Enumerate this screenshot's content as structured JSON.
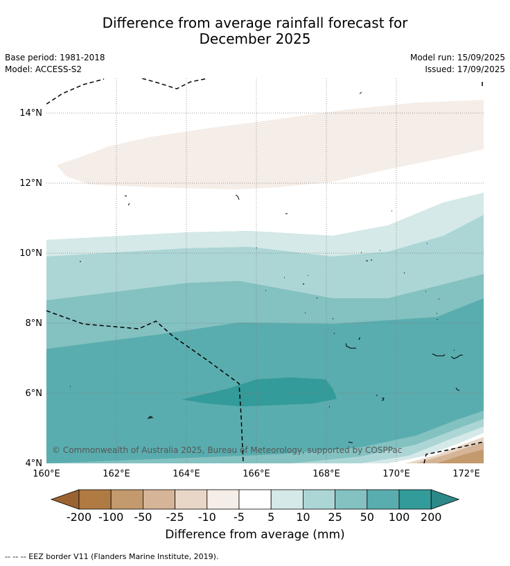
{
  "title_line1": "Difference from average rainfall forecast for",
  "title_line2": "December 2025",
  "base_period": "Base period: 1981-2018",
  "model": "Model: ACCESS-S2",
  "model_run": "Model run: 15/09/2025",
  "issued": "Issued: 17/09/2025",
  "copyright": "© Commonwealth of Australia 2025, Bureau of Meteorology, supported by COSPPac",
  "lat_labels": [
    "4°N",
    "6°N",
    "8°N",
    "10°N",
    "12°N",
    "14°N"
  ],
  "lon_labels": [
    "160°E",
    "162°E",
    "164°E",
    "166°E",
    "168°E",
    "170°E",
    "172°E"
  ],
  "colorbar": {
    "labels": [
      "-200",
      "-100",
      "-50",
      "-25",
      "-10",
      "-5",
      "5",
      "10",
      "25",
      "50",
      "100",
      "200"
    ],
    "colors": [
      "#9b6332",
      "#b07a43",
      "#c39a6d",
      "#d5b498",
      "#e8d6c6",
      "#f5ede7",
      "#ffffff",
      "#d4e9e8",
      "#acd6d5",
      "#84c1c1",
      "#5aadae",
      "#339b9a",
      "#2d8888"
    ]
  },
  "units_label": "Difference from average (mm)",
  "footer": "--  --  -- EEZ border V11 (Flanders Marine Institute, 2019)."
}
